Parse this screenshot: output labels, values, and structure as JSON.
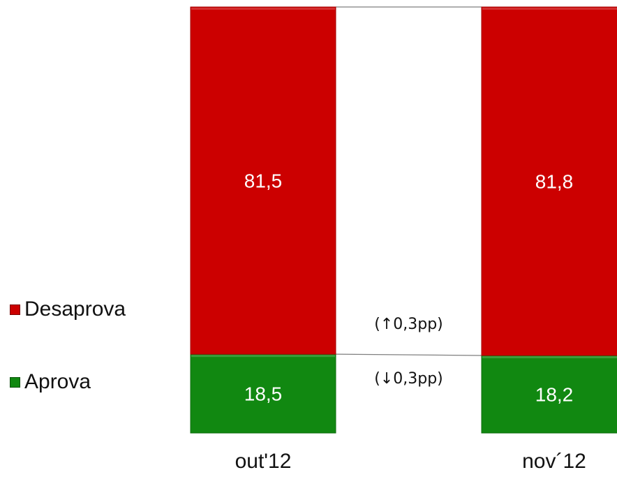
{
  "chart_data": {
    "type": "bar",
    "stacked": true,
    "categories": [
      "out'12",
      "nov´12"
    ],
    "series": [
      {
        "name": "Aprova",
        "values": [
          18.5,
          18.2
        ],
        "labels": [
          "18,5",
          "18,2"
        ],
        "color": "#118811"
      },
      {
        "name": "Desaprova",
        "values": [
          81.5,
          81.8
        ],
        "labels": [
          "81,5",
          "81,8"
        ],
        "color": "#cc0000"
      }
    ],
    "ylim": [
      0,
      100
    ],
    "annotations": [
      "(↑0,3pp)",
      "(↓0,3pp)"
    ],
    "legend_position": "left",
    "title": "",
    "xlabel": "",
    "ylabel": ""
  }
}
